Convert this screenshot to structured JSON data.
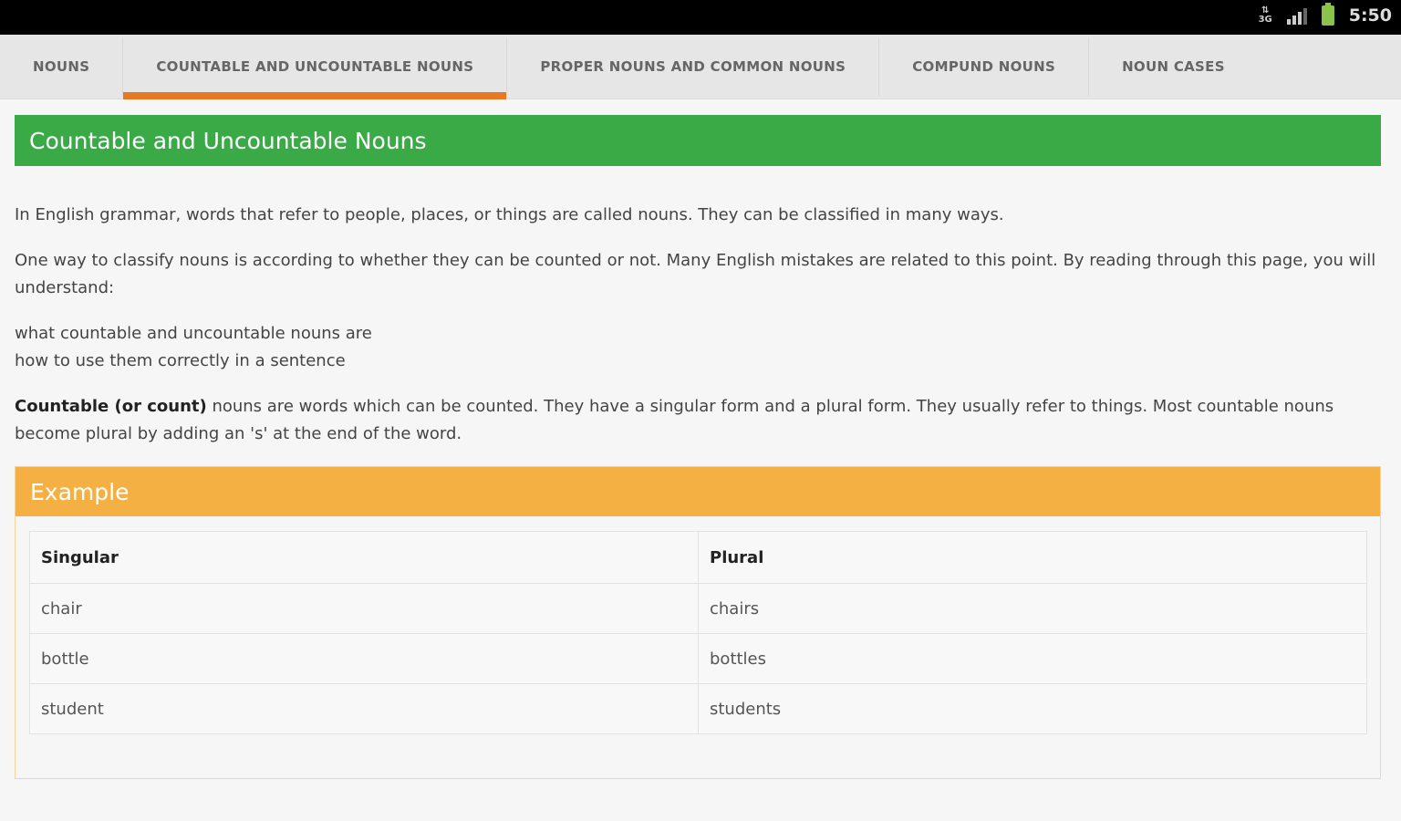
{
  "status_bar": {
    "time": "5:50",
    "icons": [
      "data-icon",
      "signal-icon",
      "battery-icon"
    ]
  },
  "tabs": [
    {
      "label": "NOUNS"
    },
    {
      "label": "COUNTABLE AND UNCOUNTABLE NOUNS",
      "active": true
    },
    {
      "label": "PROPER NOUNS AND COMMON NOUNS"
    },
    {
      "label": "COMPUND NOUNS"
    },
    {
      "label": "NOUN CASES"
    }
  ],
  "colors": {
    "accent_tab": "#e87722",
    "title_bar": "#3aaa47",
    "example_bar": "#f4b042"
  },
  "content": {
    "title": "Countable and Uncountable Nouns",
    "p1": "In English grammar, words that refer to people, places, or things are called nouns. They can be classified in many ways.",
    "p2": "One way to classify nouns is according to whether they can be counted or not. Many English mistakes are related to this point. By reading through this page, you will understand:",
    "list": [
      "what countable and uncountable nouns are",
      "how to use them correctly in a sentence"
    ],
    "p3_bold": "Countable (or count)",
    "p3": " nouns are words which can be counted. They have a singular form and a plural form. They usually refer to things. Most countable nouns become plural by adding an 's' at the end of the word.",
    "example": {
      "title": "Example",
      "headers": [
        "Singular",
        "Plural"
      ],
      "rows": [
        [
          "chair",
          "chairs"
        ],
        [
          "bottle",
          "bottles"
        ],
        [
          "student",
          "students"
        ]
      ]
    }
  }
}
